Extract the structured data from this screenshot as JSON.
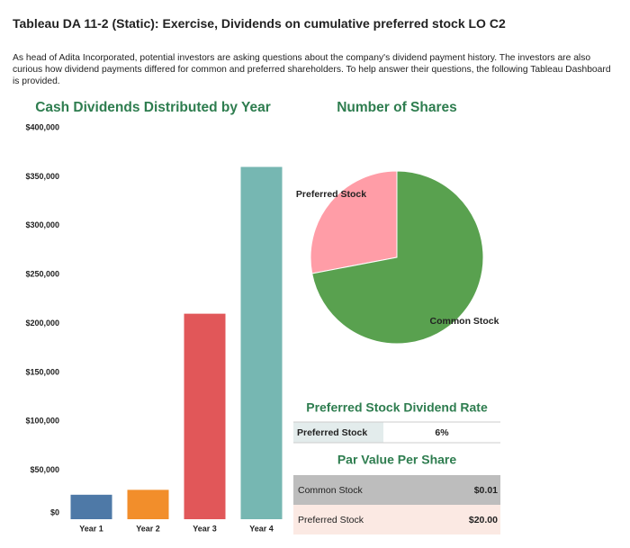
{
  "title": "Tableau DA 11-2 (Static): Exercise, Dividends on cumulative preferred stock LO C2",
  "intro": "As head of Adita Incorporated, potential investors are asking questions about the company's dividend payment history. The investors are also curious how dividend payments differed for common and preferred shareholders. To help answer their questions, the following Tableau Dashboard is provided.",
  "chart_data": [
    {
      "type": "bar",
      "title": "Cash Dividends Distributed by Year",
      "categories": [
        "Year 1",
        "Year 2",
        "Year 3",
        "Year 4"
      ],
      "values": [
        25000,
        30000,
        210000,
        360000
      ],
      "colors": [
        "#4e79a7",
        "#f28e2b",
        "#e15759",
        "#76b7b2"
      ],
      "ylim": [
        0,
        400000
      ],
      "yticks": [
        {
          "value": 0,
          "label": "$0"
        },
        {
          "value": 50000,
          "label": "$50,000"
        },
        {
          "value": 100000,
          "label": "$100,000"
        },
        {
          "value": 150000,
          "label": "$150,000"
        },
        {
          "value": 200000,
          "label": "$200,000"
        },
        {
          "value": 250000,
          "label": "$250,000"
        },
        {
          "value": 300000,
          "label": "$300,000"
        },
        {
          "value": 350000,
          "label": "$350,000"
        },
        {
          "value": 400000,
          "label": "$400,000"
        }
      ],
      "grid": false
    },
    {
      "type": "pie",
      "title": "Number of Shares",
      "categories": [
        "Preferred Stock",
        "Common Stock"
      ],
      "values": [
        28,
        72
      ],
      "colors": [
        "#ff9da7",
        "#59a14f"
      ]
    }
  ],
  "rate_table": {
    "title": "Preferred Stock Dividend Rate",
    "rows": [
      [
        "Preferred Stock",
        "6%"
      ]
    ]
  },
  "par_table": {
    "title": "Par Value Per Share",
    "rows": [
      [
        "Common Stock",
        "$0.01"
      ],
      [
        "Preferred Stock",
        "$20.00"
      ]
    ]
  }
}
